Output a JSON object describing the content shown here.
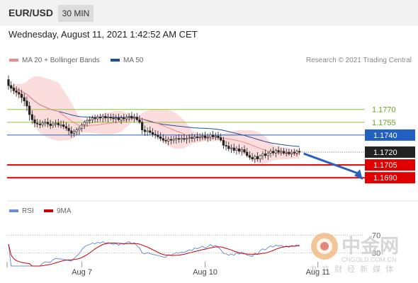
{
  "header": {
    "symbol": "EUR/USD",
    "timeframe": "30 MIN"
  },
  "datetime": "Wednesday, August 11, 2021 1:42:52 AM CET",
  "legend": {
    "ma20": "MA 20 + Bollinger Bands",
    "ma50": "MA 50",
    "copyright": "Research © 2021 Trading Central",
    "rsi": "RSI",
    "nine_ma": "9MA"
  },
  "colors": {
    "ma20": "#f08a8a",
    "ma50": "#1f4e99",
    "band": "#fbd2d2",
    "support": "#e00000",
    "pivot": "#2060c0",
    "resistance": "#8cc63f",
    "rsi": "#6a8fd8",
    "rsi_ma": "#cc0000",
    "price_tag": "#222222"
  },
  "watermark": {
    "text": "中金网",
    "url": "CNGOLD.COM.CN",
    "tagline": "中 文 财 经 新 媒 体",
    "icon": "cngold-logo-icon"
  },
  "chart_data": {
    "type": "candlestick",
    "instrument": "EUR/USD",
    "interval": "30 MIN",
    "ylim": [
      1.1662,
      1.1822
    ],
    "x_ticks": [
      {
        "label": "Aug 7",
        "index": 28
      },
      {
        "label": "Aug 10",
        "index": 75
      },
      {
        "label": "Aug 11",
        "index": 118
      }
    ],
    "levels": [
      {
        "name": "resistance-2",
        "value": 1.177,
        "label": "1.1770",
        "kind": "resistance"
      },
      {
        "name": "resistance-1",
        "value": 1.1755,
        "label": "1.1755",
        "kind": "resistance"
      },
      {
        "name": "pivot",
        "value": 1.174,
        "label": "1.1740",
        "kind": "pivot"
      },
      {
        "name": "last-price",
        "value": 1.172,
        "label": "1.1720",
        "kind": "price"
      },
      {
        "name": "support-1",
        "value": 1.1705,
        "label": "1.1705",
        "kind": "support"
      },
      {
        "name": "support-2",
        "value": 1.169,
        "label": "1.1690",
        "kind": "support"
      }
    ],
    "forecast": {
      "from": 1.172,
      "to": 1.169,
      "direction": "down"
    },
    "candles": [
      [
        1.1805,
        1.181,
        1.1793,
        1.1798
      ],
      [
        1.1798,
        1.1803,
        1.179,
        1.1795
      ],
      [
        1.1795,
        1.18,
        1.1788,
        1.1792
      ],
      [
        1.1792,
        1.1797,
        1.1785,
        1.179
      ],
      [
        1.179,
        1.1795,
        1.1783,
        1.1788
      ],
      [
        1.1788,
        1.1793,
        1.1778,
        1.1784
      ],
      [
        1.1784,
        1.1789,
        1.1774,
        1.178
      ],
      [
        1.178,
        1.1785,
        1.1768,
        1.1774
      ],
      [
        1.1774,
        1.1779,
        1.1757,
        1.1764
      ],
      [
        1.1764,
        1.1769,
        1.1753,
        1.1758
      ],
      [
        1.1758,
        1.1763,
        1.1749,
        1.1754
      ],
      [
        1.1754,
        1.1759,
        1.1749,
        1.1753
      ],
      [
        1.1753,
        1.1758,
        1.1748,
        1.1752
      ],
      [
        1.1752,
        1.1757,
        1.1749,
        1.1754
      ],
      [
        1.1754,
        1.1759,
        1.175,
        1.1755
      ],
      [
        1.1755,
        1.176,
        1.1749,
        1.1753
      ],
      [
        1.1753,
        1.1758,
        1.1747,
        1.1751
      ],
      [
        1.1751,
        1.1756,
        1.1748,
        1.1753
      ],
      [
        1.1753,
        1.1758,
        1.1749,
        1.1754
      ],
      [
        1.1754,
        1.1759,
        1.1749,
        1.1752
      ],
      [
        1.1752,
        1.1757,
        1.1748,
        1.1752
      ],
      [
        1.1752,
        1.1757,
        1.1747,
        1.175
      ],
      [
        1.175,
        1.1755,
        1.1745,
        1.1748
      ],
      [
        1.1748,
        1.1753,
        1.174,
        1.1745
      ],
      [
        1.1745,
        1.175,
        1.1737,
        1.1742
      ],
      [
        1.1742,
        1.1747,
        1.1738,
        1.1744
      ],
      [
        1.1744,
        1.1749,
        1.174,
        1.1746
      ],
      [
        1.1746,
        1.1751,
        1.174,
        1.1748
      ],
      [
        1.1748,
        1.1754,
        1.1744,
        1.1752
      ],
      [
        1.1752,
        1.1757,
        1.1747,
        1.1755
      ],
      [
        1.1755,
        1.176,
        1.175,
        1.1757
      ],
      [
        1.1757,
        1.1762,
        1.1753,
        1.1758
      ],
      [
        1.1758,
        1.1763,
        1.1754,
        1.176
      ],
      [
        1.176,
        1.1764,
        1.1755,
        1.1759
      ],
      [
        1.1759,
        1.1764,
        1.1755,
        1.1761
      ],
      [
        1.1761,
        1.1765,
        1.1756,
        1.176
      ],
      [
        1.176,
        1.1765,
        1.1755,
        1.1762
      ],
      [
        1.1762,
        1.1766,
        1.1756,
        1.176
      ],
      [
        1.176,
        1.1765,
        1.1755,
        1.1761
      ],
      [
        1.1761,
        1.1765,
        1.1757,
        1.176
      ],
      [
        1.176,
        1.1765,
        1.1755,
        1.1759
      ],
      [
        1.1759,
        1.1764,
        1.1754,
        1.176
      ],
      [
        1.176,
        1.1765,
        1.1756,
        1.1758
      ],
      [
        1.1758,
        1.1763,
        1.1753,
        1.176
      ],
      [
        1.176,
        1.1765,
        1.1756,
        1.1759
      ],
      [
        1.1759,
        1.1764,
        1.1755,
        1.1761
      ],
      [
        1.1761,
        1.1766,
        1.1756,
        1.1762
      ],
      [
        1.1762,
        1.1767,
        1.1757,
        1.176
      ],
      [
        1.176,
        1.1765,
        1.1755,
        1.1761
      ],
      [
        1.1761,
        1.1766,
        1.1756,
        1.1758
      ],
      [
        1.1758,
        1.1763,
        1.1753,
        1.1755
      ],
      [
        1.1755,
        1.176,
        1.1741,
        1.1746
      ],
      [
        1.1746,
        1.1751,
        1.1739,
        1.1744
      ],
      [
        1.1744,
        1.1749,
        1.1739,
        1.1745
      ],
      [
        1.1745,
        1.175,
        1.174,
        1.1743
      ],
      [
        1.1743,
        1.1748,
        1.1738,
        1.1741
      ],
      [
        1.1741,
        1.1746,
        1.1736,
        1.174
      ],
      [
        1.174,
        1.1745,
        1.1735,
        1.1738
      ],
      [
        1.1738,
        1.1743,
        1.1733,
        1.1736
      ],
      [
        1.1736,
        1.1741,
        1.1731,
        1.1734
      ],
      [
        1.1734,
        1.1739,
        1.173,
        1.1733
      ],
      [
        1.1733,
        1.1738,
        1.1728,
        1.1735
      ],
      [
        1.1735,
        1.1739,
        1.1729,
        1.1734
      ],
      [
        1.1734,
        1.1739,
        1.173,
        1.1735
      ],
      [
        1.1735,
        1.174,
        1.173,
        1.1736
      ],
      [
        1.1736,
        1.1741,
        1.1731,
        1.1735
      ],
      [
        1.1735,
        1.174,
        1.1731,
        1.1736
      ],
      [
        1.1736,
        1.1741,
        1.1732,
        1.1735
      ],
      [
        1.1735,
        1.174,
        1.173,
        1.1736
      ],
      [
        1.1736,
        1.1741,
        1.1731,
        1.1737
      ],
      [
        1.1737,
        1.1742,
        1.1732,
        1.1736
      ],
      [
        1.1736,
        1.1741,
        1.1732,
        1.1738
      ],
      [
        1.1738,
        1.1743,
        1.1733,
        1.1737
      ],
      [
        1.1737,
        1.1742,
        1.1733,
        1.1738
      ],
      [
        1.1738,
        1.1743,
        1.1734,
        1.1739
      ],
      [
        1.1739,
        1.1744,
        1.1734,
        1.1737
      ],
      [
        1.1737,
        1.1742,
        1.1732,
        1.1738
      ],
      [
        1.1738,
        1.1743,
        1.1733,
        1.174
      ],
      [
        1.174,
        1.1745,
        1.1735,
        1.1738
      ],
      [
        1.1738,
        1.1743,
        1.1734,
        1.1739
      ],
      [
        1.1739,
        1.1744,
        1.1734,
        1.1737
      ],
      [
        1.1737,
        1.1742,
        1.1732,
        1.1734
      ],
      [
        1.1734,
        1.1738,
        1.1724,
        1.1728
      ],
      [
        1.1728,
        1.1733,
        1.1722,
        1.1727
      ],
      [
        1.1727,
        1.1732,
        1.1721,
        1.1724
      ],
      [
        1.1724,
        1.1729,
        1.1719,
        1.1725
      ],
      [
        1.1725,
        1.173,
        1.1719,
        1.1722
      ],
      [
        1.1722,
        1.1727,
        1.1717,
        1.1724
      ],
      [
        1.1724,
        1.1729,
        1.1718,
        1.1721
      ],
      [
        1.1721,
        1.1726,
        1.1716,
        1.1723
      ],
      [
        1.1723,
        1.1728,
        1.1718,
        1.172
      ],
      [
        1.172,
        1.1725,
        1.1714,
        1.1716
      ],
      [
        1.1716,
        1.1721,
        1.1711,
        1.1714
      ],
      [
        1.1714,
        1.1719,
        1.1709,
        1.1712
      ],
      [
        1.1712,
        1.1717,
        1.1707,
        1.1715
      ],
      [
        1.1715,
        1.172,
        1.1709,
        1.1712
      ],
      [
        1.1712,
        1.1717,
        1.1708,
        1.1716
      ],
      [
        1.1716,
        1.1721,
        1.1711,
        1.1718
      ],
      [
        1.1718,
        1.1723,
        1.1713,
        1.1716
      ],
      [
        1.1716,
        1.1721,
        1.1711,
        1.1719
      ],
      [
        1.1719,
        1.1724,
        1.1714,
        1.1721
      ],
      [
        1.1721,
        1.1726,
        1.1716,
        1.1719
      ],
      [
        1.1719,
        1.1724,
        1.1714,
        1.1722
      ],
      [
        1.1722,
        1.1727,
        1.1717,
        1.172
      ],
      [
        1.172,
        1.1725,
        1.1716,
        1.1721
      ],
      [
        1.1721,
        1.1725,
        1.1717,
        1.1719
      ],
      [
        1.1719,
        1.1724,
        1.1715,
        1.172
      ],
      [
        1.172,
        1.1724,
        1.1716,
        1.1718
      ],
      [
        1.1718,
        1.1723,
        1.1714,
        1.172
      ],
      [
        1.172,
        1.1724,
        1.1716,
        1.1719
      ],
      [
        1.1719,
        1.1723,
        1.1715,
        1.1721
      ],
      [
        1.1721,
        1.1725,
        1.1717,
        1.172
      ]
    ],
    "rsi": {
      "levels": [
        70,
        30
      ],
      "level_labels": [
        "70",
        "30"
      ]
    }
  }
}
